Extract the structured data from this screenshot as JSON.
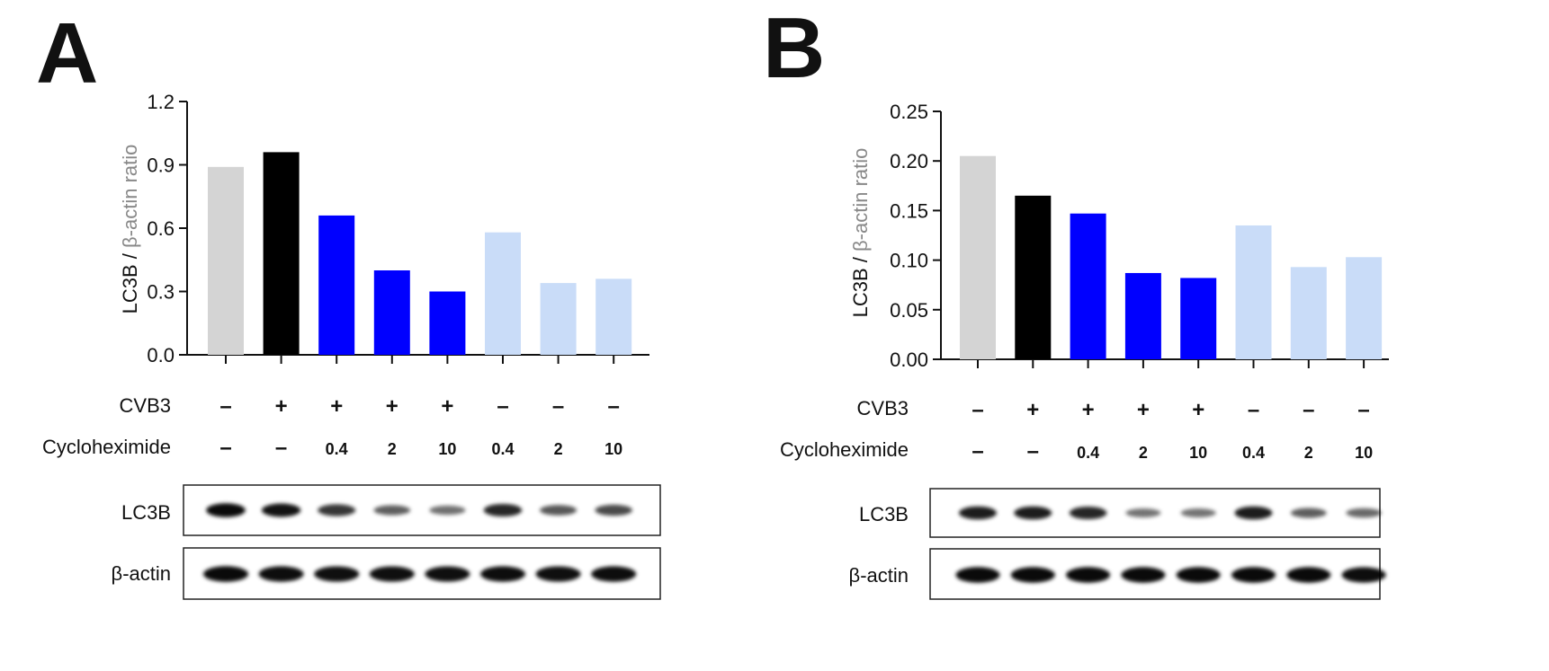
{
  "panels": [
    {
      "letter": "A",
      "row_labels": {
        "cvb3": "CVB3",
        "chx": "Cycloheximide"
      },
      "blot_labels": [
        "LC3B",
        "β-actin"
      ]
    },
    {
      "letter": "B",
      "row_labels": {
        "cvb3": "CVB3",
        "chx": "Cycloheximide"
      },
      "blot_labels": [
        "LC3B",
        "β-actin"
      ]
    }
  ],
  "chart_data": [
    {
      "type": "bar",
      "ylabel": {
        "part1": "LC3B / ",
        "part2": "β-actin ratio"
      },
      "ylim": [
        0,
        1.2
      ],
      "yticks": [
        "0.0",
        "0.3",
        "0.6",
        "0.9",
        "1.2"
      ],
      "values": [
        0.89,
        0.96,
        0.66,
        0.4,
        0.3,
        0.58,
        0.34,
        0.36
      ],
      "colors": [
        "#d4d4d4",
        "#000000",
        "#0000ff",
        "#0000ff",
        "#0000ff",
        "#c9dcf8",
        "#c9dcf8",
        "#c9dcf8"
      ],
      "cvb3": [
        "-",
        "+",
        "+",
        "+",
        "+",
        "-",
        "-",
        "-"
      ],
      "cycloheximide": [
        "-",
        "-",
        "0.4",
        "2",
        "10",
        "0.4",
        "2",
        "10"
      ],
      "lc3b_intensity": [
        0.95,
        0.9,
        0.72,
        0.5,
        0.42,
        0.8,
        0.55,
        0.62
      ],
      "actin_intensity": [
        0.95,
        0.93,
        0.92,
        0.92,
        0.92,
        0.93,
        0.92,
        0.93
      ],
      "legend": "none",
      "grid": false
    },
    {
      "type": "bar",
      "ylabel": {
        "part1": "LC3B / ",
        "part2": "β-actin ratio"
      },
      "ylim": [
        0,
        0.25
      ],
      "yticks": [
        "0.00",
        "0.05",
        "0.10",
        "0.15",
        "0.20",
        "0.25"
      ],
      "values": [
        0.205,
        0.165,
        0.147,
        0.087,
        0.082,
        0.135,
        0.093,
        0.103
      ],
      "colors": [
        "#d4d4d4",
        "#000000",
        "#0000ff",
        "#0000ff",
        "#0000ff",
        "#c9dcf8",
        "#c9dcf8",
        "#c9dcf8"
      ],
      "cvb3": [
        "-",
        "+",
        "+",
        "+",
        "+",
        "-",
        "-",
        "-"
      ],
      "cycloheximide": [
        "-",
        "-",
        "0.4",
        "2",
        "10",
        "0.4",
        "2",
        "10"
      ],
      "lc3b_intensity": [
        0.85,
        0.85,
        0.8,
        0.4,
        0.4,
        0.85,
        0.5,
        0.45
      ],
      "actin_intensity": [
        0.95,
        0.95,
        0.95,
        0.95,
        0.95,
        0.95,
        0.95,
        0.93
      ],
      "legend": "none",
      "grid": false
    }
  ]
}
